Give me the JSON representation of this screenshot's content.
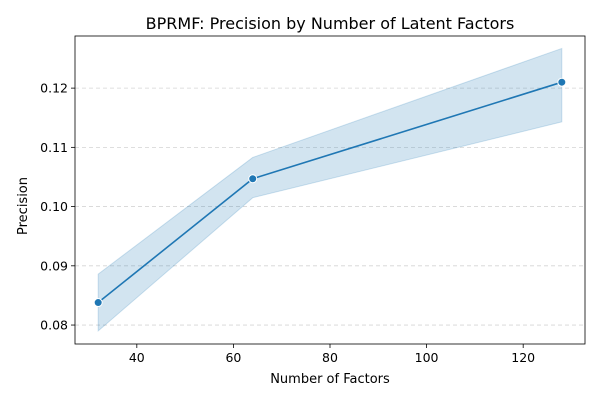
{
  "chart_data": {
    "type": "line",
    "title": "BPRMF: Precision by Number of Latent Factors",
    "xlabel": "Number of Factors",
    "ylabel": "Precision",
    "xlim": [
      27.2,
      132.8
    ],
    "ylim": [
      0.0768,
      0.1288
    ],
    "xticks": [
      40,
      60,
      80,
      100,
      120
    ],
    "xtick_labels": [
      "40",
      "60",
      "80",
      "100",
      "120"
    ],
    "yticks": [
      0.08,
      0.09,
      0.1,
      0.11,
      0.12
    ],
    "ytick_labels": [
      "0.08",
      "0.09",
      "0.10",
      "0.11",
      "0.12"
    ],
    "grid": {
      "y": true,
      "x": false,
      "style": "dashed"
    },
    "series": [
      {
        "x": [
          32,
          64,
          128
        ],
        "y": [
          0.0838,
          0.1047,
          0.121
        ],
        "ci_lower": [
          0.079,
          0.1015,
          0.1143
        ],
        "ci_upper": [
          0.0886,
          0.1083,
          0.1267
        ],
        "color": "#1f77b4",
        "marker": "circle"
      }
    ]
  }
}
